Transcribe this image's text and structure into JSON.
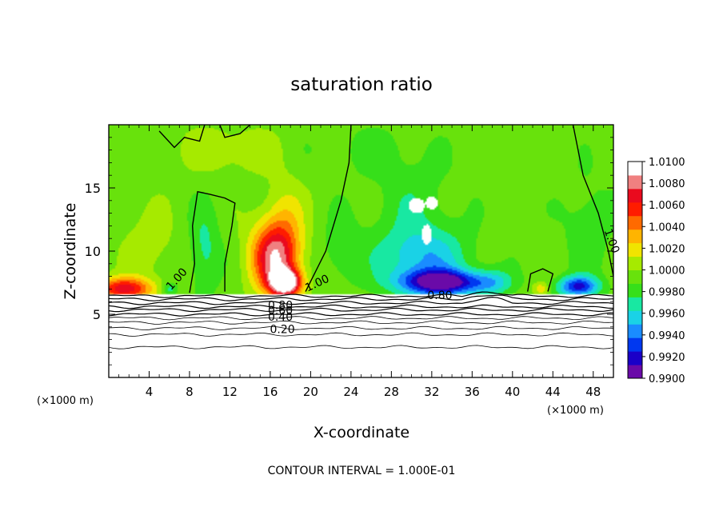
{
  "chart_data": {
    "type": "heatmap",
    "title": "saturation ratio",
    "xlabel": "X-coordinate",
    "ylabel": "Z-coordinate",
    "x_unit": "(×1000 m)",
    "z_unit": "(×1000 m)",
    "xlim": [
      0,
      50
    ],
    "ylim": [
      0,
      20
    ],
    "x_ticks": [
      4,
      8,
      12,
      16,
      20,
      24,
      28,
      32,
      36,
      40,
      44,
      48
    ],
    "y_ticks": [
      5,
      10,
      15
    ],
    "colorbar": {
      "min": 0.99,
      "max": 1.01,
      "ticks": [
        "1.0100",
        "1.0080",
        "1.0060",
        "1.0040",
        "1.0020",
        "1.0000",
        "0.9980",
        "0.9960",
        "0.9940",
        "0.9920",
        "0.9900"
      ],
      "colors": [
        "#6a0aa8",
        "#1a00c8",
        "#0038f0",
        "#1a8cff",
        "#1ad2e6",
        "#18e8a2",
        "#36df1a",
        "#68e20c",
        "#a6ea00",
        "#f0e400",
        "#ffb400",
        "#ff6a00",
        "#ff1c00",
        "#ea0a1e",
        "#f08080",
        "#ffffff"
      ]
    },
    "contour_labels": [
      "1.00",
      "1.00",
      "1.00",
      "0.80",
      "0.80",
      "0.60",
      "0.40",
      "0.20"
    ],
    "contour_interval_text": "CONTOUR INTERVAL = 1.000E-01",
    "surface_z": 6.6,
    "blobs": [
      {
        "x": 1.5,
        "z": 7.0,
        "v": 1.008,
        "rx": 2.8,
        "rz": 0.9
      },
      {
        "x": 4.0,
        "z": 10.5,
        "v": 1.0015,
        "rx": 2.5,
        "rz": 3.0
      },
      {
        "x": 16.5,
        "z": 9.5,
        "v": 1.0095,
        "rx": 2.4,
        "rz": 2.8
      },
      {
        "x": 17.5,
        "z": 7.5,
        "v": 1.012,
        "rx": 1.5,
        "rz": 1.0
      },
      {
        "x": 17.5,
        "z": 13.0,
        "v": 1.002,
        "rx": 2.0,
        "rz": 3.0
      },
      {
        "x": 9.5,
        "z": 10.0,
        "v": 0.9975,
        "rx": 1.5,
        "rz": 3.5
      },
      {
        "x": 23.0,
        "z": 10.0,
        "v": 0.9985,
        "rx": 2.0,
        "rz": 2.8
      },
      {
        "x": 33.0,
        "z": 7.5,
        "v": 0.9905,
        "rx": 4.0,
        "rz": 1.0
      },
      {
        "x": 31.0,
        "z": 9.5,
        "v": 0.9955,
        "rx": 4.5,
        "rz": 2.5
      },
      {
        "x": 30.0,
        "z": 14.0,
        "v": 0.9985,
        "rx": 4.0,
        "rz": 3.0
      },
      {
        "x": 46.5,
        "z": 7.2,
        "v": 0.9925,
        "rx": 2.0,
        "rz": 0.8
      },
      {
        "x": 47.5,
        "z": 12.0,
        "v": 0.9985,
        "rx": 2.5,
        "rz": 4.0
      },
      {
        "x": 42.8,
        "z": 7.0,
        "v": 1.003,
        "rx": 0.8,
        "rz": 0.5
      },
      {
        "x": 6.0,
        "z": 7.0,
        "v": 0.997,
        "rx": 0.8,
        "rz": 0.5
      },
      {
        "x": 38.0,
        "z": 7.5,
        "v": 0.997,
        "rx": 2.0,
        "rz": 1.0
      },
      {
        "x": 12.0,
        "z": 18.0,
        "v": 1.0015,
        "rx": 5.0,
        "rz": 2.0
      },
      {
        "x": 26.0,
        "z": 18.0,
        "v": 0.999,
        "rx": 6.0,
        "rz": 2.0
      }
    ],
    "sat_islands": [
      {
        "x": 30.5,
        "z": 13.6,
        "rx": 0.8,
        "rz": 0.6
      },
      {
        "x": 32.0,
        "z": 13.8,
        "rx": 0.6,
        "rz": 0.5
      },
      {
        "x": 31.5,
        "z": 11.3,
        "rx": 0.5,
        "rz": 0.8
      }
    ]
  }
}
